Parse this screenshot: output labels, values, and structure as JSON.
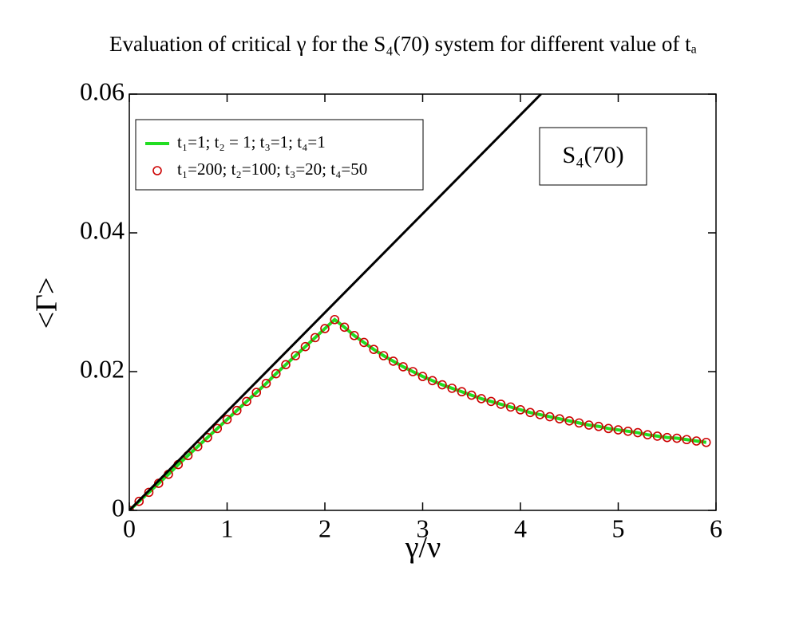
{
  "chart_data": {
    "type": "line",
    "title": "Evaluation of critical γ for the S₄(70) system for different value of tₐ",
    "x_label": "γ/ν",
    "y_label": "<Γ>",
    "annotation": "S₄(70)",
    "xlim": [
      0,
      6
    ],
    "ylim": [
      0,
      0.06
    ],
    "xticks": [
      0,
      1,
      2,
      3,
      4,
      5,
      6
    ],
    "yticks": [
      0,
      0.02,
      0.04,
      0.06
    ],
    "grid": false,
    "legend": "upper left",
    "series": [
      {
        "name": "t₁=1; t₂ = 1; t₃=1; t₄=1",
        "color": "#22dd22",
        "marker": "none",
        "x": [
          0,
          0.1,
          0.2,
          0.3,
          0.4,
          0.5,
          0.6,
          0.7,
          0.8,
          0.9,
          1,
          1.1,
          1.2,
          1.3,
          1.4,
          1.5,
          1.6,
          1.7,
          1.8,
          1.9,
          2,
          2.1,
          2.2,
          2.3,
          2.4,
          2.5,
          2.6,
          2.7,
          2.8,
          2.9,
          3,
          3.1,
          3.2,
          3.3,
          3.4,
          3.5,
          3.6,
          3.7,
          3.8,
          3.9,
          4,
          4.1,
          4.2,
          4.3,
          4.4,
          4.5,
          4.6,
          4.7,
          4.8,
          4.9,
          5,
          5.1,
          5.2,
          5.3,
          5.4,
          5.5,
          5.6,
          5.7,
          5.8,
          5.9
        ],
        "values": [
          0,
          0.0013,
          0.0026,
          0.0039,
          0.0052,
          0.0066,
          0.0079,
          0.0092,
          0.0105,
          0.0118,
          0.0131,
          0.0144,
          0.0157,
          0.017,
          0.0183,
          0.0197,
          0.021,
          0.0223,
          0.0236,
          0.0249,
          0.0262,
          0.0275,
          0.0264,
          0.0252,
          0.0242,
          0.0232,
          0.0223,
          0.0215,
          0.0207,
          0.02,
          0.0193,
          0.0187,
          0.0181,
          0.0176,
          0.0171,
          0.0166,
          0.0161,
          0.0157,
          0.0153,
          0.0149,
          0.0145,
          0.0141,
          0.0138,
          0.0135,
          0.0132,
          0.0129,
          0.0126,
          0.0123,
          0.0121,
          0.0118,
          0.0116,
          0.0114,
          0.0112,
          0.0109,
          0.0107,
          0.0105,
          0.0104,
          0.0102,
          0.01,
          0.0098
        ]
      },
      {
        "name": "t₁=200; t₂=100; t₃=20; t₄=50",
        "color": "#cc0000",
        "marker": "circle",
        "x": [
          0,
          0.1,
          0.2,
          0.3,
          0.4,
          0.5,
          0.6,
          0.7,
          0.8,
          0.9,
          1,
          1.1,
          1.2,
          1.3,
          1.4,
          1.5,
          1.6,
          1.7,
          1.8,
          1.9,
          2,
          2.1,
          2.2,
          2.3,
          2.4,
          2.5,
          2.6,
          2.7,
          2.8,
          2.9,
          3,
          3.1,
          3.2,
          3.3,
          3.4,
          3.5,
          3.6,
          3.7,
          3.8,
          3.9,
          4,
          4.1,
          4.2,
          4.3,
          4.4,
          4.5,
          4.6,
          4.7,
          4.8,
          4.9,
          5,
          5.1,
          5.2,
          5.3,
          5.4,
          5.5,
          5.6,
          5.7,
          5.8,
          5.9
        ],
        "values": [
          0,
          0.0013,
          0.0026,
          0.0039,
          0.0052,
          0.0066,
          0.0079,
          0.0092,
          0.0105,
          0.0118,
          0.0131,
          0.0144,
          0.0157,
          0.017,
          0.0183,
          0.0197,
          0.021,
          0.0223,
          0.0236,
          0.0249,
          0.0262,
          0.0275,
          0.0264,
          0.0252,
          0.0242,
          0.0232,
          0.0223,
          0.0215,
          0.0207,
          0.02,
          0.0193,
          0.0187,
          0.0181,
          0.0176,
          0.0171,
          0.0166,
          0.0161,
          0.0157,
          0.0153,
          0.0149,
          0.0145,
          0.0141,
          0.0138,
          0.0135,
          0.0132,
          0.0129,
          0.0126,
          0.0123,
          0.0121,
          0.0118,
          0.0116,
          0.0114,
          0.0112,
          0.0109,
          0.0107,
          0.0105,
          0.0104,
          0.0102,
          0.01,
          0.0098
        ]
      },
      {
        "color": "#000000",
        "marker": "none",
        "x": [
          0,
          4.21
        ],
        "values": [
          0,
          0.06
        ]
      }
    ]
  }
}
